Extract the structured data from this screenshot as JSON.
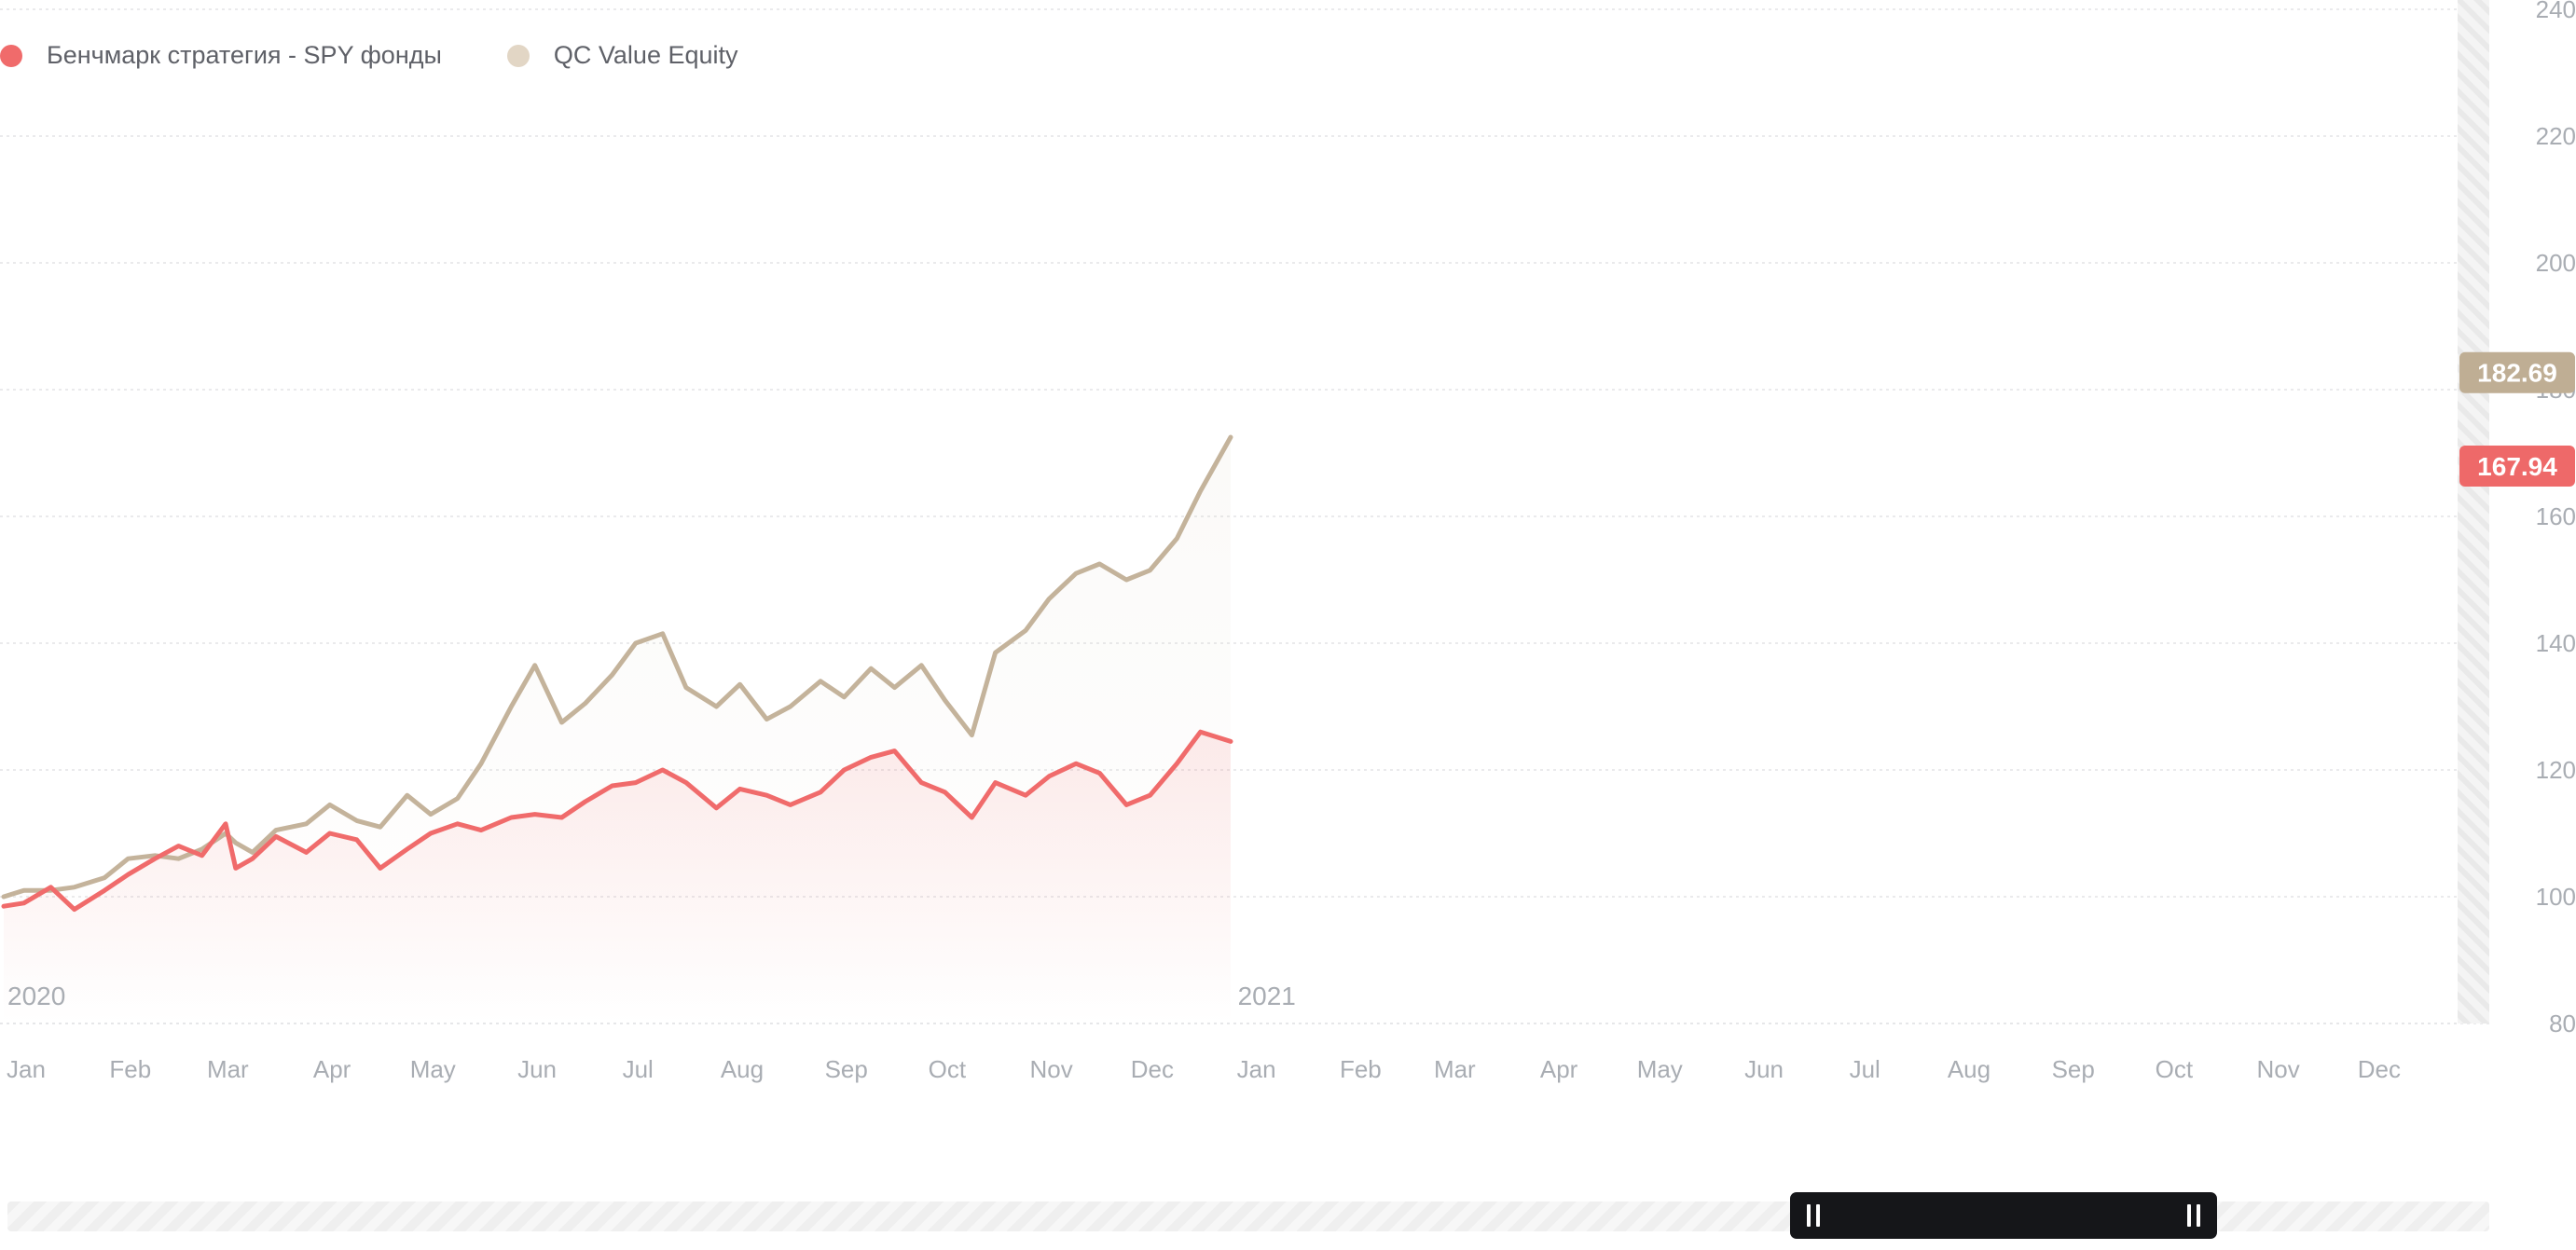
{
  "legend": {
    "series_a": "Бенчмарк стратегия - SPY фонды",
    "series_b": "QC Value Equity"
  },
  "colors": {
    "benchmark": "#f06b6b",
    "qc": "#c4b39b",
    "benchmark_badge": "#ee6969",
    "qc_badge": "#bfae94"
  },
  "chart_data": {
    "type": "line",
    "y_ticks": [
      "80",
      "100",
      "120",
      "140",
      "160",
      "180",
      "200",
      "220",
      "240"
    ],
    "ylim": [
      80,
      240
    ],
    "xlim": [
      "2020-01-01",
      "2021-12-31"
    ],
    "x_ticks": [
      "Jan",
      "Feb",
      "Mar",
      "Apr",
      "May",
      "Jun",
      "Jul",
      "Aug",
      "Sep",
      "Oct",
      "Nov",
      "Dec",
      "Jan",
      "Feb",
      "Mar",
      "Apr",
      "May",
      "Jun",
      "Jul",
      "Aug",
      "Sep",
      "Oct",
      "Nov",
      "Dec"
    ],
    "year_labels": [
      {
        "label": "2020",
        "date": "2020-01-01"
      },
      {
        "label": "2021",
        "date": "2021-01-01"
      }
    ],
    "last_value_labels": {
      "benchmark": "167.94",
      "qc": "182.69"
    },
    "series": [
      {
        "name": "Бенчмарк стратегия - SPY фонды",
        "key": "benchmark",
        "points": [
          [
            "2020-01-01",
            98.5
          ],
          [
            "2020-01-07",
            99.0
          ],
          [
            "2020-01-15",
            101.5
          ],
          [
            "2020-01-22",
            98.0
          ],
          [
            "2020-01-31",
            101.0
          ],
          [
            "2020-02-07",
            103.5
          ],
          [
            "2020-02-15",
            106.0
          ],
          [
            "2020-02-22",
            108.0
          ],
          [
            "2020-02-29",
            106.5
          ],
          [
            "2020-03-07",
            111.5
          ],
          [
            "2020-03-10",
            104.5
          ],
          [
            "2020-03-15",
            106.0
          ],
          [
            "2020-03-22",
            109.5
          ],
          [
            "2020-03-31",
            107.0
          ],
          [
            "2020-04-07",
            110.0
          ],
          [
            "2020-04-15",
            109.0
          ],
          [
            "2020-04-22",
            104.5
          ],
          [
            "2020-04-30",
            107.5
          ],
          [
            "2020-05-07",
            110.0
          ],
          [
            "2020-05-15",
            111.5
          ],
          [
            "2020-05-22",
            110.5
          ],
          [
            "2020-05-31",
            112.5
          ],
          [
            "2020-06-07",
            113.0
          ],
          [
            "2020-06-15",
            112.5
          ],
          [
            "2020-06-22",
            115.0
          ],
          [
            "2020-06-30",
            117.5
          ],
          [
            "2020-07-07",
            118.0
          ],
          [
            "2020-07-15",
            120.0
          ],
          [
            "2020-07-22",
            118.0
          ],
          [
            "2020-07-31",
            114.0
          ],
          [
            "2020-08-07",
            117.0
          ],
          [
            "2020-08-15",
            116.0
          ],
          [
            "2020-08-22",
            114.5
          ],
          [
            "2020-08-31",
            116.5
          ],
          [
            "2020-09-07",
            120.0
          ],
          [
            "2020-09-15",
            122.0
          ],
          [
            "2020-09-22",
            123.0
          ],
          [
            "2020-09-30",
            118.0
          ],
          [
            "2020-10-07",
            116.5
          ],
          [
            "2020-10-15",
            112.5
          ],
          [
            "2020-10-22",
            118.0
          ],
          [
            "2020-10-31",
            116.0
          ],
          [
            "2020-11-07",
            119.0
          ],
          [
            "2020-11-15",
            121.0
          ],
          [
            "2020-11-22",
            119.5
          ],
          [
            "2020-11-30",
            114.5
          ],
          [
            "2020-12-07",
            116.0
          ],
          [
            "2020-12-15",
            121.0
          ],
          [
            "2020-12-22",
            126.0
          ],
          [
            "2020-12-31",
            124.5
          ]
        ]
      },
      {
        "name": "QC Value Equity",
        "key": "qc",
        "points": [
          [
            "2020-01-01",
            100.0
          ],
          [
            "2020-01-07",
            101.0
          ],
          [
            "2020-01-15",
            101.0
          ],
          [
            "2020-01-22",
            101.5
          ],
          [
            "2020-01-31",
            103.0
          ],
          [
            "2020-02-07",
            106.0
          ],
          [
            "2020-02-15",
            106.5
          ],
          [
            "2020-02-22",
            106.0
          ],
          [
            "2020-02-29",
            107.5
          ],
          [
            "2020-03-07",
            110.0
          ],
          [
            "2020-03-10",
            108.5
          ],
          [
            "2020-03-15",
            107.0
          ],
          [
            "2020-03-22",
            110.5
          ],
          [
            "2020-03-31",
            111.5
          ],
          [
            "2020-04-07",
            114.5
          ],
          [
            "2020-04-15",
            112.0
          ],
          [
            "2020-04-22",
            111.0
          ],
          [
            "2020-04-30",
            116.0
          ],
          [
            "2020-05-07",
            113.0
          ],
          [
            "2020-05-15",
            115.5
          ],
          [
            "2020-05-22",
            121.0
          ],
          [
            "2020-05-31",
            130.0
          ],
          [
            "2020-06-07",
            136.5
          ],
          [
            "2020-06-15",
            127.5
          ],
          [
            "2020-06-22",
            130.5
          ],
          [
            "2020-06-30",
            135.0
          ],
          [
            "2020-07-07",
            140.0
          ],
          [
            "2020-07-15",
            141.5
          ],
          [
            "2020-07-22",
            133.0
          ],
          [
            "2020-07-31",
            130.0
          ],
          [
            "2020-08-07",
            133.5
          ],
          [
            "2020-08-15",
            128.0
          ],
          [
            "2020-08-22",
            130.0
          ],
          [
            "2020-08-31",
            134.0
          ],
          [
            "2020-09-07",
            131.5
          ],
          [
            "2020-09-15",
            136.0
          ],
          [
            "2020-09-22",
            133.0
          ],
          [
            "2020-09-30",
            136.5
          ],
          [
            "2020-10-07",
            131.0
          ],
          [
            "2020-10-15",
            125.5
          ],
          [
            "2020-10-22",
            138.5
          ],
          [
            "2020-10-31",
            142.0
          ],
          [
            "2020-11-07",
            147.0
          ],
          [
            "2020-11-15",
            151.0
          ],
          [
            "2020-11-22",
            152.5
          ],
          [
            "2020-11-30",
            150.0
          ],
          [
            "2020-12-07",
            151.5
          ],
          [
            "2020-12-15",
            156.5
          ],
          [
            "2020-12-22",
            164.0
          ],
          [
            "2020-12-31",
            172.5
          ]
        ]
      }
    ]
  }
}
